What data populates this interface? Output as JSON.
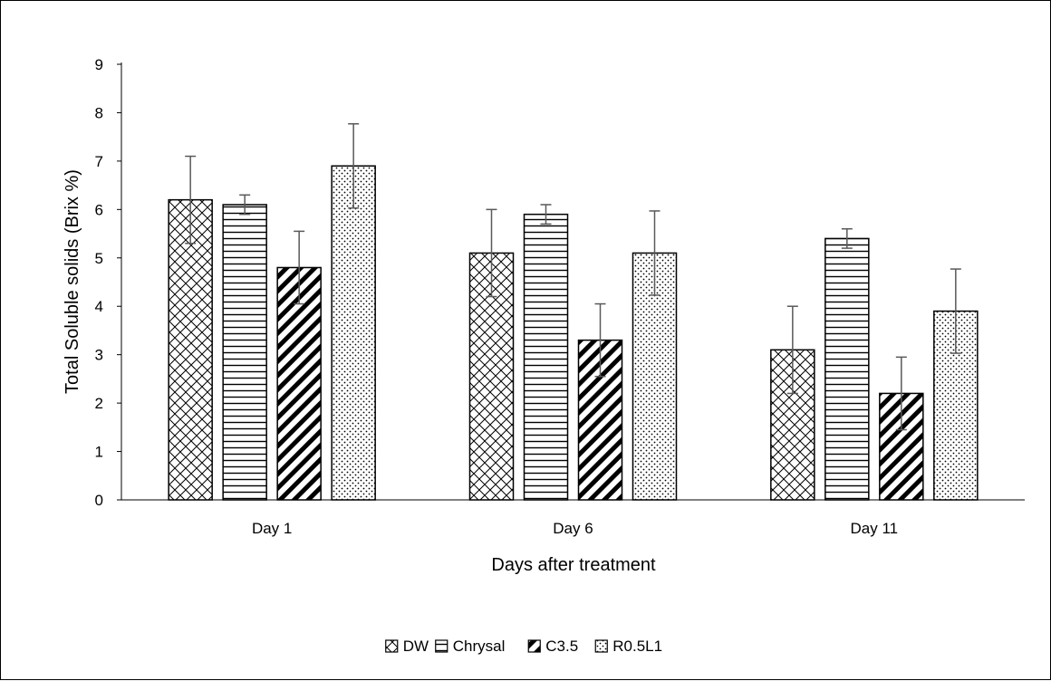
{
  "chart_data": {
    "type": "bar",
    "title": "",
    "xlabel": "Days after treatment",
    "ylabel": "Total Soluble solids (Brix %)",
    "categories": [
      "Day 1",
      "Day 6",
      "Day 11"
    ],
    "ylim": [
      0,
      9
    ],
    "yticks": [
      "0",
      "1",
      "2",
      "3",
      "4",
      "5",
      "6",
      "7",
      "8",
      "9"
    ],
    "grid": false,
    "legend_position": "bottom",
    "series": [
      {
        "name": "DW",
        "pattern": "crosshatch",
        "values": [
          6.2,
          5.1,
          3.1
        ],
        "errors": [
          0.9,
          0.9,
          0.9
        ]
      },
      {
        "name": "Chrysal",
        "pattern": "horizontal-lines",
        "values": [
          6.1,
          5.9,
          5.4
        ],
        "errors": [
          0.2,
          0.2,
          0.2
        ]
      },
      {
        "name": "C3.5",
        "pattern": "diagonal-stripes",
        "values": [
          4.8,
          3.3,
          2.2
        ],
        "errors": [
          0.75,
          0.75,
          0.75
        ]
      },
      {
        "name": "R0.5L1",
        "pattern": "dots",
        "values": [
          6.9,
          5.1,
          3.9
        ],
        "errors": [
          0.87,
          0.87,
          0.87
        ]
      }
    ],
    "colors": {
      "bar_fill": "#ffffff",
      "bar_stroke": "#000000",
      "error_bar": "#595959",
      "axis": "#000000"
    }
  }
}
